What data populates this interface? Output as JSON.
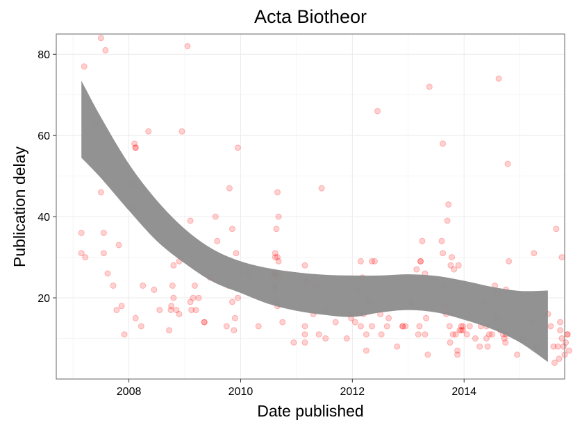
{
  "chart_data": {
    "type": "scatter",
    "title": "Acta Biotheor",
    "xlabel": "Date published",
    "ylabel": "Publication delay",
    "xlim": [
      2006.7,
      2015.8
    ],
    "ylim": [
      0,
      85
    ],
    "x_ticks": [
      2008,
      2010,
      2012,
      2014
    ],
    "x_tick_labels": [
      "2008",
      "2010",
      "2012",
      "2014"
    ],
    "y_ticks": [
      20,
      40,
      60,
      80
    ],
    "y_tick_labels": [
      "20",
      "40",
      "60",
      "80"
    ],
    "grid": true,
    "colors": {
      "points": "#ff0000",
      "band": "#8c8c8c",
      "grid": "#ebebeb",
      "panel_border": "#7f7f7f"
    },
    "series": [
      {
        "type": "scatter",
        "points": [
          [
            2007.15,
            36
          ],
          [
            2007.15,
            31
          ],
          [
            2007.2,
            77
          ],
          [
            2007.22,
            30
          ],
          [
            2007.4,
            63
          ],
          [
            2007.5,
            84
          ],
          [
            2007.55,
            36
          ],
          [
            2007.55,
            31
          ],
          [
            2007.58,
            81
          ],
          [
            2007.62,
            26
          ],
          [
            2007.72,
            23
          ],
          [
            2007.78,
            17
          ],
          [
            2007.82,
            33
          ],
          [
            2007.87,
            18
          ],
          [
            2007.92,
            11
          ],
          [
            2007.5,
            46
          ],
          [
            2008.05,
            48
          ],
          [
            2008.07,
            42
          ],
          [
            2008.1,
            58
          ],
          [
            2008.12,
            57
          ],
          [
            2008.12,
            57
          ],
          [
            2008.12,
            15
          ],
          [
            2008.22,
            13
          ],
          [
            2008.25,
            23
          ],
          [
            2008.35,
            61
          ],
          [
            2008.45,
            22
          ],
          [
            2008.55,
            17
          ],
          [
            2008.72,
            12
          ],
          [
            2008.75,
            17
          ],
          [
            2008.76,
            18
          ],
          [
            2008.78,
            23
          ],
          [
            2008.8,
            20
          ],
          [
            2008.8,
            28
          ],
          [
            2008.85,
            17
          ],
          [
            2008.9,
            29
          ],
          [
            2008.9,
            16
          ],
          [
            2008.95,
            61
          ],
          [
            2009.05,
            82
          ],
          [
            2009.1,
            39
          ],
          [
            2009.1,
            19
          ],
          [
            2009.12,
            17
          ],
          [
            2009.15,
            20
          ],
          [
            2009.18,
            23
          ],
          [
            2009.2,
            17
          ],
          [
            2009.25,
            20
          ],
          [
            2009.35,
            14
          ],
          [
            2009.35,
            14
          ],
          [
            2009.45,
            25
          ],
          [
            2009.55,
            40
          ],
          [
            2009.58,
            34
          ],
          [
            2009.75,
            13
          ],
          [
            2009.78,
            23
          ],
          [
            2009.8,
            47
          ],
          [
            2009.85,
            37
          ],
          [
            2009.85,
            19
          ],
          [
            2009.88,
            12
          ],
          [
            2009.9,
            15
          ],
          [
            2009.92,
            31
          ],
          [
            2009.95,
            57
          ],
          [
            2009.95,
            20
          ],
          [
            2010.12,
            26
          ],
          [
            2010.32,
            13
          ],
          [
            2010.6,
            26
          ],
          [
            2010.6,
            25
          ],
          [
            2010.6,
            23
          ],
          [
            2010.62,
            30
          ],
          [
            2010.62,
            31
          ],
          [
            2010.62,
            26
          ],
          [
            2010.62,
            22
          ],
          [
            2010.64,
            26
          ],
          [
            2010.64,
            37
          ],
          [
            2010.64,
            19
          ],
          [
            2010.66,
            18
          ],
          [
            2010.66,
            30
          ],
          [
            2010.66,
            46
          ],
          [
            2010.68,
            40
          ],
          [
            2010.68,
            29
          ],
          [
            2010.68,
            25
          ],
          [
            2010.75,
            14
          ],
          [
            2010.95,
            9
          ],
          [
            2011.15,
            28
          ],
          [
            2011.15,
            13
          ],
          [
            2011.15,
            11
          ],
          [
            2011.15,
            9
          ],
          [
            2011.18,
            24
          ],
          [
            2011.3,
            16
          ],
          [
            2011.35,
            23
          ],
          [
            2011.4,
            11
          ],
          [
            2011.45,
            47
          ],
          [
            2011.52,
            17
          ],
          [
            2011.52,
            10
          ],
          [
            2011.7,
            14
          ],
          [
            2011.9,
            10
          ],
          [
            2011.95,
            16
          ],
          [
            2011.98,
            15
          ],
          [
            2012.05,
            14
          ],
          [
            2012.1,
            22
          ],
          [
            2012.15,
            13
          ],
          [
            2012.15,
            29
          ],
          [
            2012.18,
            25
          ],
          [
            2012.2,
            16
          ],
          [
            2012.25,
            7
          ],
          [
            2012.25,
            11
          ],
          [
            2012.3,
            19
          ],
          [
            2012.35,
            13
          ],
          [
            2012.35,
            29
          ],
          [
            2012.4,
            29
          ],
          [
            2012.45,
            66
          ],
          [
            2012.5,
            16
          ],
          [
            2012.52,
            11
          ],
          [
            2012.62,
            13
          ],
          [
            2012.65,
            15
          ],
          [
            2012.8,
            8
          ],
          [
            2012.9,
            13
          ],
          [
            2012.9,
            13
          ],
          [
            2012.95,
            13
          ],
          [
            2013.05,
            19
          ],
          [
            2013.15,
            27
          ],
          [
            2013.18,
            11
          ],
          [
            2013.2,
            13
          ],
          [
            2013.22,
            29
          ],
          [
            2013.22,
            29
          ],
          [
            2013.25,
            34
          ],
          [
            2013.3,
            26
          ],
          [
            2013.3,
            11
          ],
          [
            2013.32,
            15
          ],
          [
            2013.35,
            6
          ],
          [
            2013.38,
            72
          ],
          [
            2013.75,
            9
          ],
          [
            2013.88,
            7
          ],
          [
            2013.95,
            12
          ],
          [
            2013.95,
            13
          ],
          [
            2013.98,
            13
          ],
          [
            2013.98,
            12
          ],
          [
            2013.6,
            34
          ],
          [
            2013.62,
            58
          ],
          [
            2013.62,
            31
          ],
          [
            2013.64,
            23
          ],
          [
            2013.66,
            18
          ],
          [
            2013.68,
            16
          ],
          [
            2013.7,
            39
          ],
          [
            2013.72,
            43
          ],
          [
            2013.74,
            13
          ],
          [
            2013.76,
            28
          ],
          [
            2013.78,
            30
          ],
          [
            2013.8,
            11
          ],
          [
            2013.82,
            27
          ],
          [
            2013.85,
            11
          ],
          [
            2013.88,
            6
          ],
          [
            2013.9,
            28
          ],
          [
            2013.92,
            12
          ],
          [
            2014.05,
            11
          ],
          [
            2014.1,
            13
          ],
          [
            2014.2,
            10
          ],
          [
            2014.28,
            8
          ],
          [
            2014.3,
            13
          ],
          [
            2014.35,
            19
          ],
          [
            2014.4,
            13
          ],
          [
            2014.4,
            10
          ],
          [
            2014.42,
            8
          ],
          [
            2014.45,
            11
          ],
          [
            2014.5,
            11
          ],
          [
            2014.55,
            23
          ],
          [
            2014.58,
            15
          ],
          [
            2014.6,
            21
          ],
          [
            2014.62,
            74
          ],
          [
            2014.65,
            12
          ],
          [
            2014.7,
            11
          ],
          [
            2014.72,
            10
          ],
          [
            2014.74,
            9
          ],
          [
            2014.75,
            11
          ],
          [
            2014.75,
            22
          ],
          [
            2014.78,
            53
          ],
          [
            2014.8,
            29
          ],
          [
            2014.95,
            6
          ],
          [
            2015.05,
            10
          ],
          [
            2015.2,
            14
          ],
          [
            2015.25,
            31
          ],
          [
            2015.3,
            8
          ],
          [
            2015.5,
            16
          ],
          [
            2015.55,
            13
          ],
          [
            2015.6,
            8
          ],
          [
            2015.62,
            4
          ],
          [
            2015.65,
            37
          ],
          [
            2015.68,
            8
          ],
          [
            2015.7,
            5
          ],
          [
            2015.72,
            14
          ],
          [
            2015.72,
            12
          ],
          [
            2015.75,
            10
          ],
          [
            2015.75,
            30
          ],
          [
            2015.78,
            8
          ],
          [
            2015.8,
            6
          ],
          [
            2015.82,
            9
          ],
          [
            2015.85,
            11
          ],
          [
            2015.85,
            11
          ],
          [
            2015.88,
            7
          ]
        ]
      },
      {
        "type": "confidence-band",
        "x": [
          2007.15,
          2007.5,
          2008.0,
          2008.5,
          2009.0,
          2009.5,
          2010.0,
          2010.5,
          2011.0,
          2011.5,
          2012.0,
          2012.5,
          2013.0,
          2013.5,
          2014.0,
          2014.5,
          2015.0,
          2015.5
        ],
        "upper": [
          73.5,
          64.5,
          53.0,
          44.0,
          37.0,
          32.0,
          29.0,
          27.3,
          26.3,
          25.7,
          25.5,
          25.5,
          25.8,
          25.4,
          24.2,
          22.7,
          21.7,
          21.8
        ],
        "lower": [
          54.5,
          49.5,
          41.5,
          34.0,
          28.5,
          24.0,
          21.2,
          18.5,
          16.8,
          15.8,
          15.3,
          16.4,
          17.0,
          16.4,
          14.6,
          12.3,
          9.0,
          4.2
        ]
      }
    ]
  }
}
